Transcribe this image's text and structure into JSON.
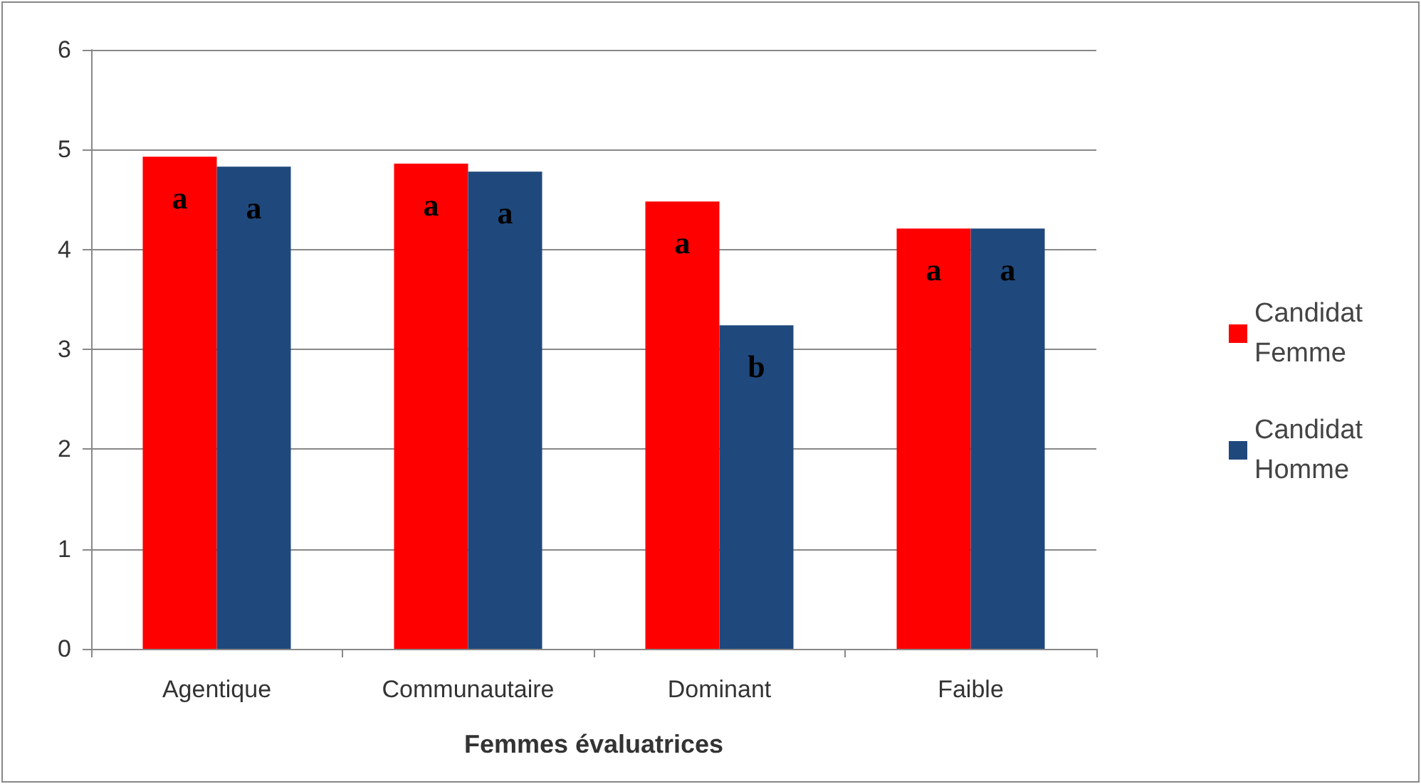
{
  "chart_data": {
    "type": "bar",
    "xlabel": "Femmes évaluatrices",
    "categories": [
      "Agentique",
      "Communautaire",
      "Dominant",
      "Faible"
    ],
    "series": [
      {
        "name": "Candidat Femme",
        "color": "#ff0000",
        "values": [
          4.93,
          4.86,
          4.48,
          4.21
        ],
        "value_labels": [
          "a",
          "a",
          "a",
          "a"
        ]
      },
      {
        "name": "Candidat Homme",
        "color": "#1f497d",
        "values": [
          4.83,
          4.78,
          3.24,
          4.21
        ],
        "value_labels": [
          "a",
          "a",
          "b",
          "a"
        ]
      }
    ],
    "ylim": [
      0,
      6
    ],
    "yticks": [
      0,
      1,
      2,
      3,
      4,
      5,
      6
    ],
    "grid": "y",
    "legend": "right"
  }
}
